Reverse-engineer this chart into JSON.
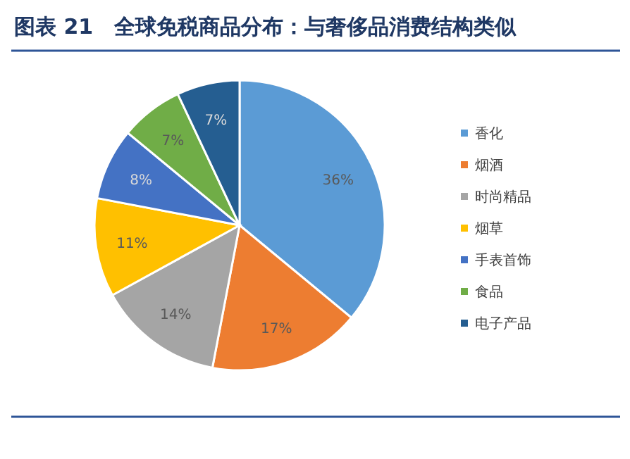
{
  "chart_data": {
    "type": "pie",
    "title": "图表 21　全球免税商品分布：与奢侈品消费结构类似",
    "categories": [
      "香化",
      "烟酒",
      "时尚精品",
      "烟草",
      "手表首饰",
      "食品",
      "电子产品"
    ],
    "values": [
      36,
      17,
      14,
      11,
      8,
      7,
      7
    ],
    "value_labels": [
      "36%",
      "17%",
      "14%",
      "11%",
      "8%",
      "7%",
      "7%"
    ],
    "colors": [
      "#5b9bd5",
      "#ed7d31",
      "#a5a5a5",
      "#ffc000",
      "#4472c4",
      "#70ad47",
      "#255e91"
    ],
    "legend": "right"
  }
}
